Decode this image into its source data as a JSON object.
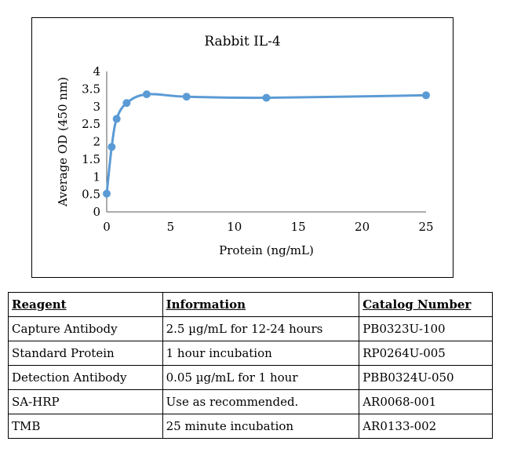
{
  "chart_data": {
    "type": "line",
    "title": "Rabbit IL-4",
    "xlabel": "Protein (ng/mL)",
    "ylabel": "Average OD (450 nm)",
    "xlim": [
      0,
      25
    ],
    "ylim": [
      0,
      4
    ],
    "xticks": [
      "0",
      "5",
      "10",
      "15",
      "20",
      "25"
    ],
    "yticks": [
      "0",
      "0.5",
      "1",
      "1.5",
      "2",
      "2.5",
      "3",
      "3.5",
      "4"
    ],
    "grid": false,
    "series_color": "#5b9bd5",
    "x": [
      0,
      0.39,
      0.78,
      1.56,
      3.13,
      6.25,
      12.5,
      25
    ],
    "y": [
      0.52,
      1.85,
      2.65,
      3.1,
      3.35,
      3.28,
      3.25,
      3.32
    ]
  },
  "table": {
    "headers": [
      "Reagent",
      "Information",
      "Catalog Number"
    ],
    "rows": [
      [
        "Capture Antibody",
        "2.5 µg/mL for 12-24 hours",
        "PB0323U-100"
      ],
      [
        "Standard Protein",
        "1 hour incubation",
        "RP0264U-005"
      ],
      [
        "Detection Antibody",
        "0.05 µg/mL for 1 hour",
        "PBB0324U-050"
      ],
      [
        "SA-HRP",
        "Use as recommended.",
        "AR0068-001"
      ],
      [
        "TMB",
        "25 minute incubation",
        "AR0133-002"
      ]
    ]
  }
}
